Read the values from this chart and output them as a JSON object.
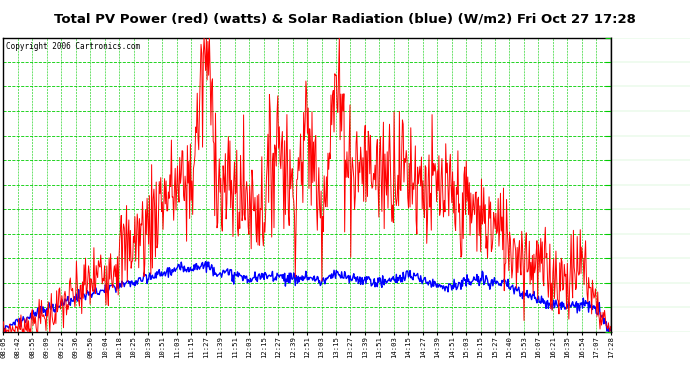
{
  "title": "Total PV Power (red) (watts) & Solar Radiation (blue) (W/m2) Fri Oct 27 17:28",
  "copyright": "Copyright 2006 Cartronics.com",
  "bg_color": "#ffffff",
  "plot_bg_color": "#ffffff",
  "grid_color": "#00cc00",
  "title_color": "#000000",
  "red_color": "#ff0000",
  "blue_color": "#0000ff",
  "ymin": 1.1,
  "ymax": 304.5,
  "yticks": [
    1.1,
    26.4,
    51.7,
    77.0,
    102.2,
    127.5,
    152.8,
    178.1,
    203.4,
    228.7,
    254.0,
    279.2,
    304.5
  ],
  "xtick_labels": [
    "08:05",
    "08:42",
    "08:55",
    "09:09",
    "09:22",
    "09:36",
    "09:50",
    "10:04",
    "10:18",
    "10:25",
    "10:39",
    "10:51",
    "11:03",
    "11:15",
    "11:27",
    "11:39",
    "11:51",
    "12:03",
    "12:15",
    "12:27",
    "12:39",
    "12:51",
    "13:03",
    "13:15",
    "13:27",
    "13:39",
    "13:51",
    "14:03",
    "14:15",
    "14:27",
    "14:39",
    "14:51",
    "15:03",
    "15:15",
    "15:27",
    "15:40",
    "15:53",
    "16:07",
    "16:21",
    "16:35",
    "16:54",
    "17:07",
    "17:28"
  ]
}
